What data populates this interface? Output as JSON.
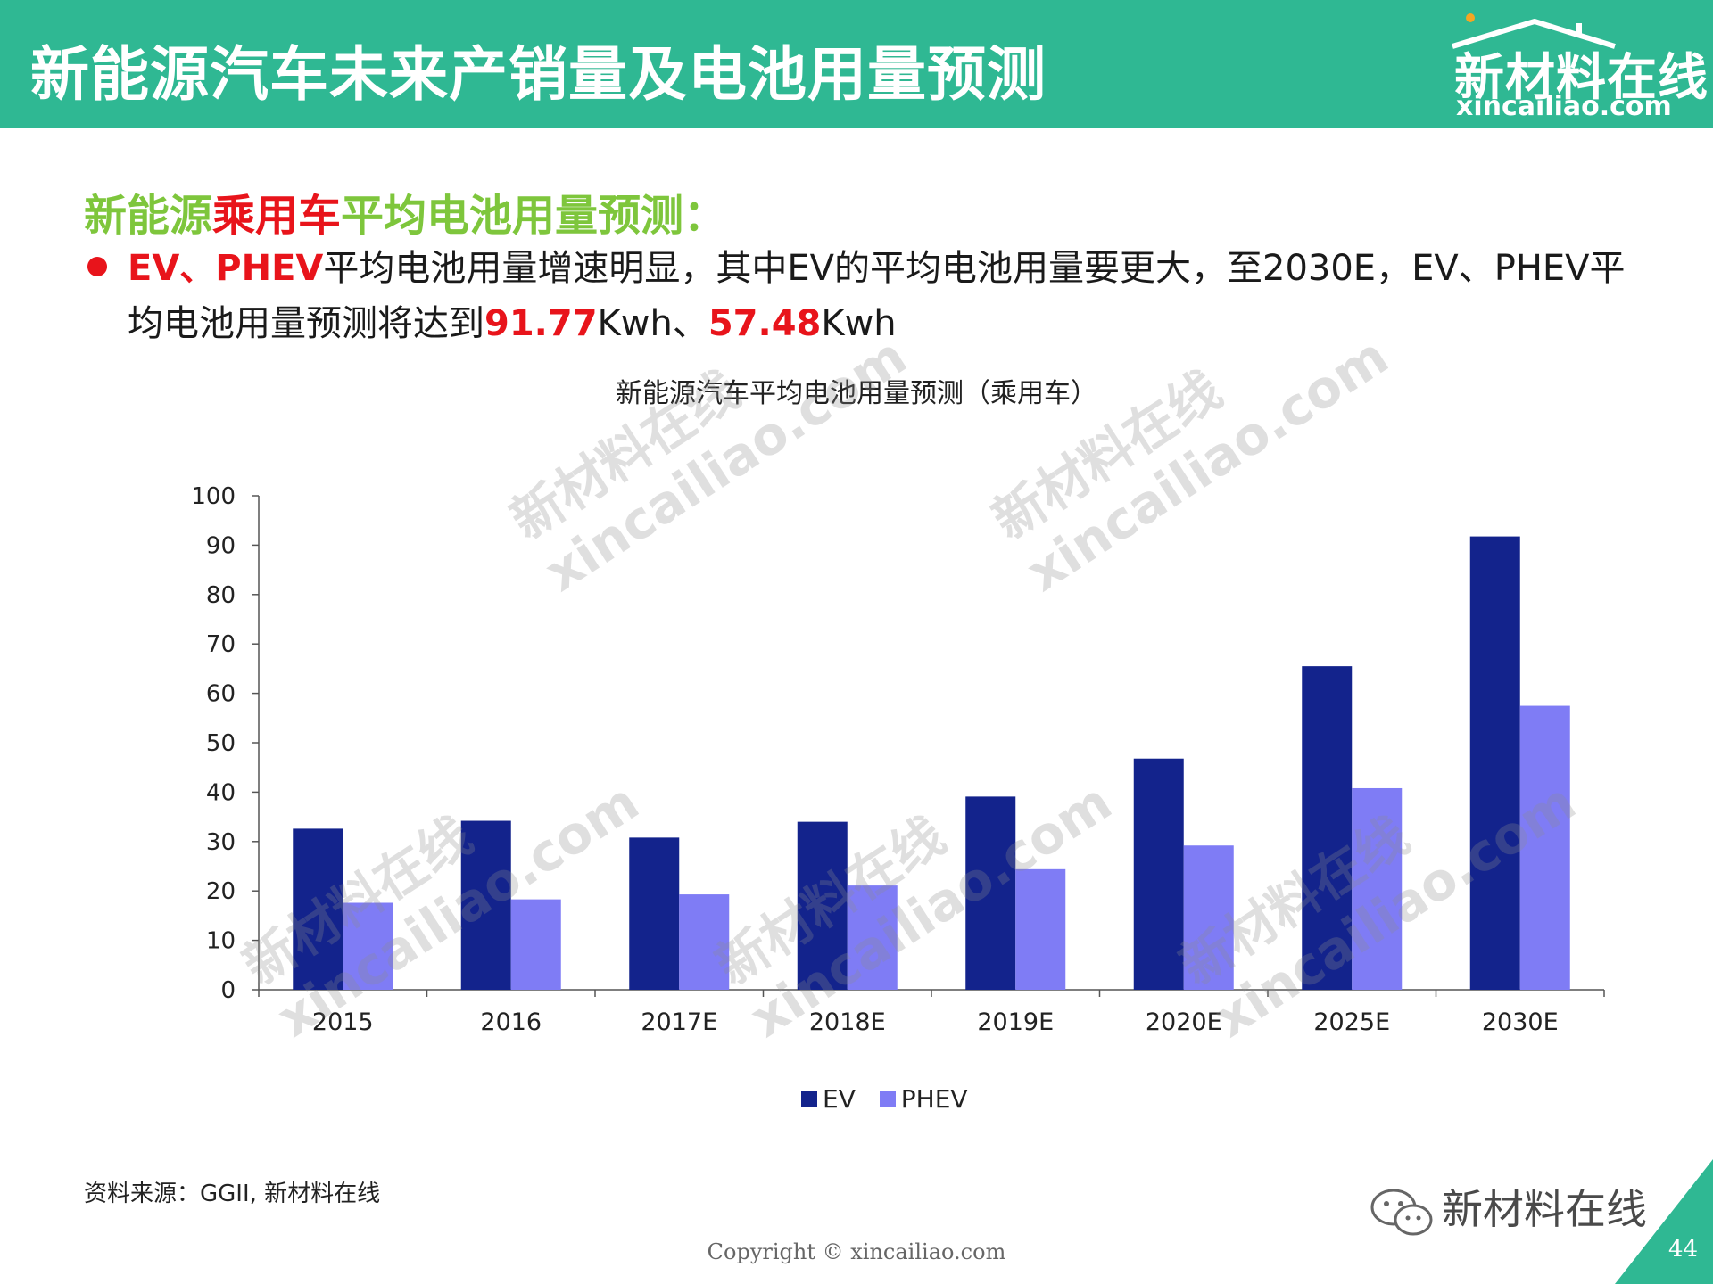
{
  "header": {
    "title": "新能源汽车未来产销量及电池用量预测",
    "logo_text": "新材料在线",
    "logo_sub": "xincailiao.com"
  },
  "subtitle": {
    "part1": "新能源",
    "part2_red": "乘用车",
    "part3": "平均电池用量预测："
  },
  "bullet": {
    "lead_red": "EV、PHEV",
    "text1": "平均电池用量增速明显，其中EV的平均电池用量要更大，至2030E，EV、PHEV平均电池用量预测将达到",
    "value1_red": "91.77",
    "text2": "Kwh、",
    "value2_red": "57.48",
    "text3": "Kwh"
  },
  "chart_data": {
    "type": "bar",
    "title": "新能源汽车平均电池用量预测（乘用车）",
    "categories": [
      "2015",
      "2016",
      "2017E",
      "2018E",
      "2019E",
      "2020E",
      "2025E",
      "2030E"
    ],
    "series": [
      {
        "name": "EV",
        "color": "#13238c",
        "values": [
          32.6,
          34.2,
          30.8,
          34.0,
          39.1,
          46.8,
          65.5,
          91.77
        ]
      },
      {
        "name": "PHEV",
        "color": "#7f7cf5",
        "values": [
          17.6,
          18.3,
          19.3,
          21.1,
          24.4,
          29.2,
          40.8,
          57.48
        ]
      }
    ],
    "ylim": [
      0,
      100
    ],
    "yticks": [
      "0",
      "10",
      "20",
      "30",
      "40",
      "50",
      "60",
      "70",
      "80",
      "90",
      "100"
    ],
    "grid": false,
    "legend": "bottom-center"
  },
  "source": "资料来源：GGII, 新材料在线",
  "copyright": "Copyright © xincailiao.com",
  "wechat_label": "新材料在线",
  "page_number": "44",
  "watermark": {
    "line1": "新材料在线",
    "line2": "xincailiao.com"
  },
  "colors": {
    "header_bg": "#2fb893",
    "accent_green": "#7ec63c",
    "accent_red": "#e8141b"
  }
}
